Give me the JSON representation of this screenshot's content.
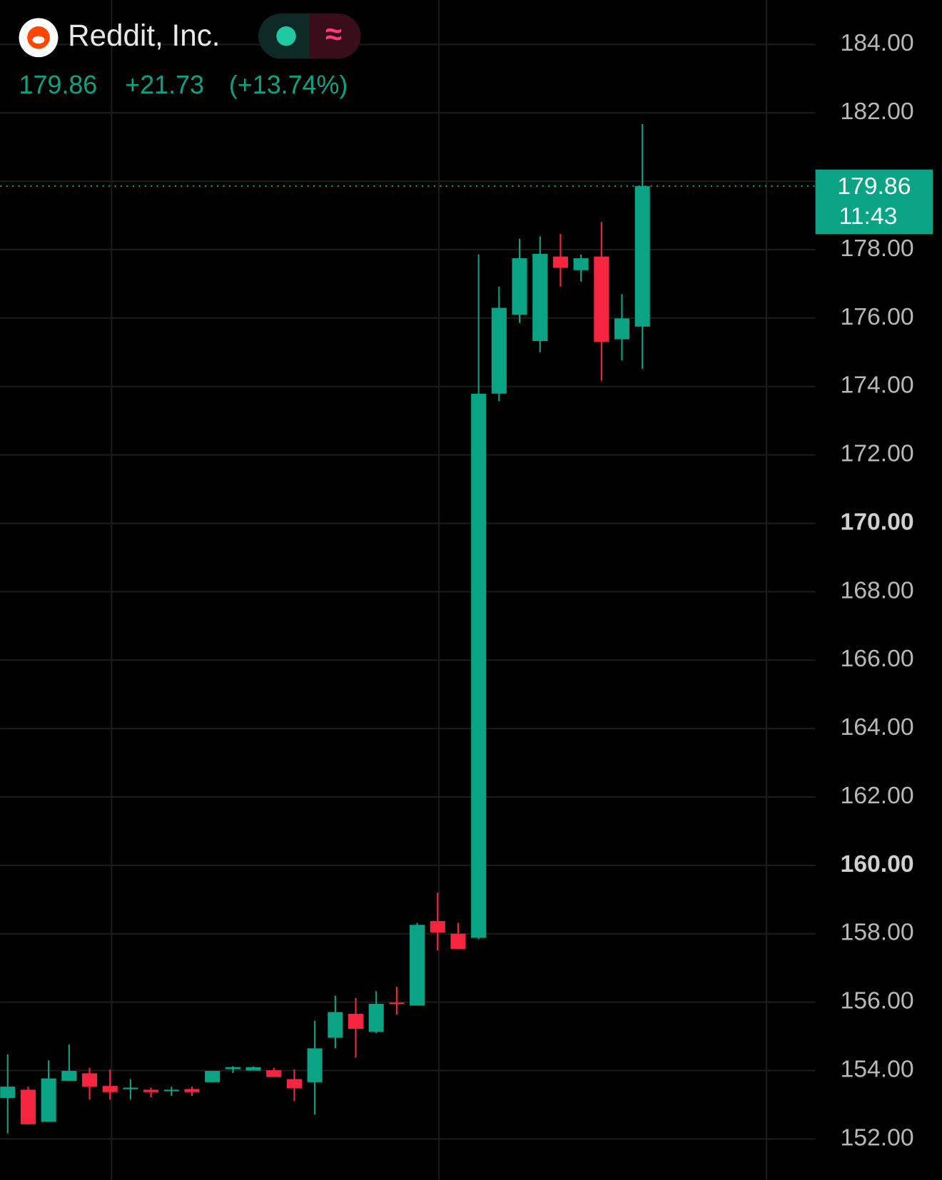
{
  "header": {
    "title": "Reddit, Inc.",
    "change": "+21.73",
    "change_pct": "(+13.74%)"
  },
  "chart_data": {
    "type": "candlestick",
    "up_color": "#0aa384",
    "down_color": "#f5243f",
    "last_price": 179.86,
    "last_time": "11:43",
    "grid": true,
    "ylim": [
      150.8,
      185.3
    ],
    "yticks": [
      {
        "value": 152,
        "label": "152.00"
      },
      {
        "value": 154,
        "label": "154.00"
      },
      {
        "value": 156,
        "label": "156.00"
      },
      {
        "value": 158,
        "label": "158.00"
      },
      {
        "value": 160,
        "label": "160.00"
      },
      {
        "value": 162,
        "label": "162.00"
      },
      {
        "value": 164,
        "label": "164.00"
      },
      {
        "value": 166,
        "label": "166.00"
      },
      {
        "value": 168,
        "label": "168.00"
      },
      {
        "value": 170,
        "label": "170.00"
      },
      {
        "value": 172,
        "label": "172.00"
      },
      {
        "value": 174,
        "label": "174.00"
      },
      {
        "value": 176,
        "label": "176.00"
      },
      {
        "value": 178,
        "label": "178.00"
      },
      {
        "value": 180,
        "label": "180.00"
      },
      {
        "value": 182,
        "label": "182.00"
      },
      {
        "value": 184,
        "label": "184.00"
      }
    ],
    "open": [
      153.2,
      153.44,
      152.5,
      153.7,
      153.92,
      153.55,
      153.48,
      153.44,
      153.42,
      153.46,
      153.66,
      154.04,
      154.0,
      154.01,
      153.75,
      153.66,
      154.96,
      155.66,
      155.13,
      155.99,
      155.9,
      158.37,
      158.0,
      157.88,
      173.79,
      176.1,
      175.33,
      177.8,
      177.4,
      177.8,
      175.38,
      175.75
    ],
    "high": [
      154.47,
      153.53,
      154.3,
      154.76,
      154.08,
      154.03,
      153.75,
      153.5,
      153.53,
      153.53,
      153.99,
      154.13,
      154.12,
      154.08,
      154.03,
      155.46,
      156.19,
      156.12,
      156.32,
      156.45,
      158.32,
      159.2,
      158.32,
      177.86,
      176.92,
      178.32,
      178.39,
      178.46,
      177.86,
      178.81,
      176.7,
      181.67
    ],
    "low": [
      152.16,
      152.43,
      152.5,
      153.7,
      153.15,
      153.15,
      153.15,
      153.22,
      153.26,
      153.26,
      153.66,
      153.93,
      154.0,
      153.81,
      153.11,
      152.71,
      154.65,
      154.38,
      155.09,
      155.64,
      155.9,
      157.51,
      157.55,
      157.84,
      173.57,
      175.86,
      175.0,
      176.92,
      177.07,
      174.17,
      174.76,
      174.52
    ],
    "close": [
      153.53,
      152.43,
      153.77,
      153.99,
      153.53,
      153.37,
      153.5,
      153.37,
      153.44,
      153.37,
      153.99,
      154.1,
      154.1,
      153.81,
      153.48,
      154.65,
      155.71,
      155.22,
      155.95,
      155.97,
      158.26,
      158.04,
      157.55,
      173.79,
      176.3,
      177.75,
      177.88,
      177.47,
      177.75,
      175.31,
      175.99,
      179.86
    ]
  }
}
